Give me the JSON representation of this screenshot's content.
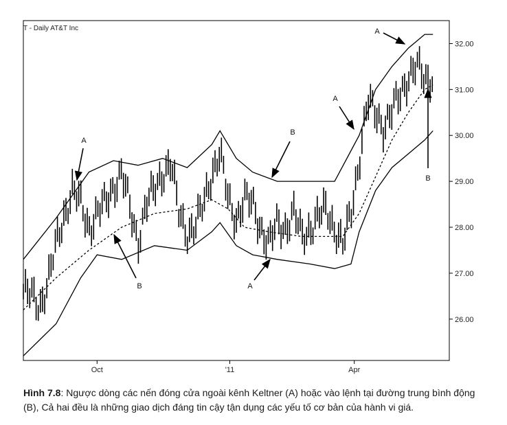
{
  "chart_data": {
    "type": "ohlc",
    "title": "T - Daily  AT&T Inc",
    "x_ticks": [
      "Oct",
      "'11",
      "Apr"
    ],
    "y_ticks": [
      "32.00",
      "31.00",
      "30.00",
      "29.00",
      "28.00",
      "27.00",
      "26.00"
    ],
    "ylim": [
      25.1,
      32.5
    ],
    "legend": "none",
    "grid": false,
    "series": [
      {
        "style": "bars",
        "points": [
          [
            0,
            26.6
          ],
          [
            5,
            26.5
          ],
          [
            10,
            26.3
          ],
          [
            15,
            26.8
          ],
          [
            20,
            27.6
          ],
          [
            25,
            28.3
          ],
          [
            30,
            28.8
          ],
          [
            35,
            28.5
          ],
          [
            40,
            28.0
          ],
          [
            45,
            28.3
          ],
          [
            50,
            28.5
          ],
          [
            55,
            28.9
          ],
          [
            60,
            29.2
          ],
          [
            65,
            28.4
          ],
          [
            70,
            27.7
          ],
          [
            75,
            28.5
          ],
          [
            80,
            28.8
          ],
          [
            85,
            29.2
          ],
          [
            90,
            29.4
          ],
          [
            95,
            28.3
          ],
          [
            100,
            27.9
          ],
          [
            105,
            28.0
          ],
          [
            110,
            28.5
          ],
          [
            115,
            29.2
          ],
          [
            120,
            29.6
          ],
          [
            125,
            28.6
          ],
          [
            130,
            28.2
          ],
          [
            135,
            28.6
          ],
          [
            140,
            28.5
          ],
          [
            145,
            28.0
          ],
          [
            150,
            27.6
          ],
          [
            155,
            28.1
          ],
          [
            160,
            28.0
          ],
          [
            165,
            28.3
          ],
          [
            170,
            27.8
          ],
          [
            175,
            28.0
          ],
          [
            180,
            28.2
          ],
          [
            185,
            28.4
          ],
          [
            190,
            28.0
          ],
          [
            195,
            27.6
          ],
          [
            200,
            28.3
          ],
          [
            205,
            29.5
          ],
          [
            210,
            30.7
          ],
          [
            215,
            30.5
          ],
          [
            220,
            30.2
          ],
          [
            225,
            30.5
          ],
          [
            230,
            30.9
          ],
          [
            235,
            31.3
          ],
          [
            240,
            31.5
          ],
          [
            245,
            31.2
          ],
          [
            250,
            31.3
          ]
        ]
      },
      {
        "style": "dashed",
        "points": [
          [
            0,
            26.2
          ],
          [
            20,
            26.9
          ],
          [
            40,
            27.5
          ],
          [
            60,
            28.0
          ],
          [
            80,
            28.3
          ],
          [
            100,
            28.4
          ],
          [
            115,
            28.6
          ],
          [
            125,
            28.4
          ],
          [
            135,
            28.0
          ],
          [
            150,
            27.9
          ],
          [
            170,
            27.8
          ],
          [
            185,
            27.8
          ],
          [
            195,
            27.8
          ],
          [
            205,
            28.3
          ],
          [
            215,
            29.1
          ],
          [
            225,
            29.9
          ],
          [
            235,
            30.5
          ],
          [
            245,
            31.0
          ],
          [
            250,
            31.1
          ]
        ]
      },
      {
        "style": "solid",
        "points": [
          [
            0,
            27.3
          ],
          [
            20,
            28.2
          ],
          [
            40,
            29.2
          ],
          [
            55,
            29.45
          ],
          [
            70,
            29.35
          ],
          [
            85,
            29.5
          ],
          [
            100,
            29.3
          ],
          [
            115,
            29.8
          ],
          [
            120,
            30.1
          ],
          [
            130,
            29.5
          ],
          [
            140,
            29.2
          ],
          [
            155,
            29.0
          ],
          [
            175,
            29.0
          ],
          [
            190,
            29.0
          ],
          [
            205,
            30.0
          ],
          [
            215,
            31.0
          ],
          [
            225,
            31.5
          ],
          [
            235,
            31.9
          ],
          [
            245,
            32.2
          ],
          [
            250,
            32.2
          ]
        ]
      },
      {
        "style": "solid",
        "points": [
          [
            0,
            25.2
          ],
          [
            20,
            25.9
          ],
          [
            35,
            26.9
          ],
          [
            45,
            27.4
          ],
          [
            60,
            27.3
          ],
          [
            80,
            27.6
          ],
          [
            100,
            27.5
          ],
          [
            115,
            27.9
          ],
          [
            120,
            28.1
          ],
          [
            130,
            27.6
          ],
          [
            140,
            27.4
          ],
          [
            155,
            27.3
          ],
          [
            175,
            27.2
          ],
          [
            190,
            27.1
          ],
          [
            200,
            27.2
          ],
          [
            205,
            27.9
          ],
          [
            215,
            28.8
          ],
          [
            225,
            29.3
          ],
          [
            235,
            29.6
          ],
          [
            245,
            29.9
          ],
          [
            250,
            30.1
          ]
        ]
      }
    ],
    "annotations": [
      {
        "text": "A",
        "x": 35,
        "y": 28.9
      },
      {
        "text": "B",
        "x": 52,
        "y": 28.2
      },
      {
        "text": "B",
        "x": 147,
        "y": 28.9
      },
      {
        "text": "A",
        "x": 145,
        "y": 27.2
      },
      {
        "text": "A",
        "x": 195,
        "y": 30.0
      },
      {
        "text": "A",
        "x": 232,
        "y": 31.9
      },
      {
        "text": "B",
        "x": 242,
        "y": 31.0
      }
    ]
  },
  "caption": {
    "label": "Hình 7.8",
    "text": ": Ngược dòng các nến đóng cửa ngoài kênh Keltner (A) hoặc vào lệnh tại đường trung bình động (B), Cả hai đều là những giao dịch đáng tin cậy tận dụng các yếu tố cơ bản của hành vi giá."
  }
}
